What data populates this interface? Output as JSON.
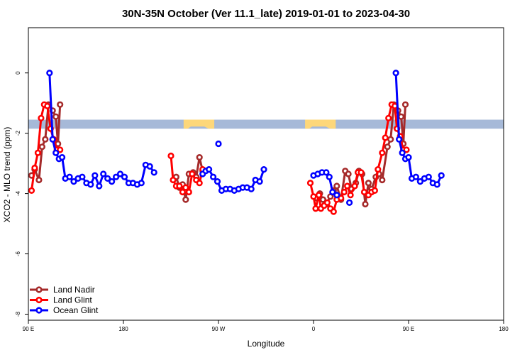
{
  "chart_data": {
    "type": "line",
    "title": "30N-35N October (Ver 11.1_late)   2019-01-01 to 2023-04-30",
    "xlabel": "Longitude",
    "ylabel": "XCO2 - MLO trend (ppm)",
    "xlim": [
      90,
      540
    ],
    "ylim": [
      -8.2,
      1.5
    ],
    "x_ticks": [
      {
        "value": 90,
        "label": "90 E"
      },
      {
        "value": 180,
        "label": "180"
      },
      {
        "value": 270,
        "label": "90 W"
      },
      {
        "value": 360,
        "label": "0"
      },
      {
        "value": 450,
        "label": "90 E"
      },
      {
        "value": 540,
        "label": "180"
      }
    ],
    "y_ticks": [
      {
        "value": 0,
        "label": "0"
      },
      {
        "value": -2,
        "label": "-2"
      },
      {
        "value": -4,
        "label": "-4"
      },
      {
        "value": -6,
        "label": "-6"
      },
      {
        "value": -8,
        "label": "-8"
      }
    ],
    "legend_position": "bottom-left",
    "grid": false,
    "band": {
      "y_range": [
        -1.85,
        -1.55
      ],
      "ocean_color": "#a6b9d8",
      "land_color": "#fdd77a",
      "land_segments": [
        [
          237,
          266
        ],
        [
          352,
          381
        ]
      ]
    },
    "series": [
      {
        "name": "Land Nadir",
        "color": "#a52a2a",
        "points": [
          [
            93,
            -3.4
          ],
          [
            96,
            -3.2
          ],
          [
            100,
            -3.55
          ],
          [
            103,
            -2.45
          ],
          [
            106,
            -2.2
          ],
          [
            109,
            -1.05
          ],
          [
            113,
            -1.25
          ],
          [
            116,
            -1.45
          ],
          [
            118,
            -2.35
          ],
          [
            120,
            -1.05
          ],
          [
            230,
            -3.45
          ],
          [
            233,
            -3.8
          ],
          [
            236,
            -3.7
          ],
          [
            239,
            -4.2
          ],
          [
            242,
            -3.35
          ],
          [
            246,
            -3.3
          ],
          [
            249,
            -3.45
          ],
          [
            252,
            -2.8
          ],
          [
            255,
            -3.25
          ],
          [
            363,
            -4.15
          ],
          [
            366,
            -4.0
          ],
          [
            369,
            -4.2
          ],
          [
            372,
            -4.35
          ],
          [
            376,
            -4.1
          ],
          [
            379,
            -3.9
          ],
          [
            382,
            -3.75
          ],
          [
            386,
            -4.2
          ],
          [
            390,
            -3.25
          ],
          [
            393,
            -3.35
          ],
          [
            396,
            -3.85
          ],
          [
            400,
            -3.65
          ],
          [
            403,
            -3.25
          ],
          [
            406,
            -3.35
          ],
          [
            409,
            -4.35
          ],
          [
            412,
            -3.65
          ],
          [
            415,
            -3.85
          ],
          [
            419,
            -3.45
          ],
          [
            422,
            -3.35
          ],
          [
            425,
            -3.55
          ],
          [
            430,
            -2.45
          ],
          [
            433,
            -2.2
          ],
          [
            436,
            -1.05
          ],
          [
            440,
            -1.25
          ],
          [
            443,
            -1.45
          ],
          [
            445,
            -2.35
          ],
          [
            447,
            -1.05
          ]
        ]
      },
      {
        "name": "Land Glint",
        "color": "#ff0000",
        "points": [
          [
            93,
            -3.9
          ],
          [
            96,
            -3.15
          ],
          [
            99,
            -2.65
          ],
          [
            102,
            -1.5
          ],
          [
            105,
            -1.05
          ],
          [
            108,
            -1.1
          ],
          [
            111,
            -1.85
          ],
          [
            114,
            -2.2
          ],
          [
            117,
            -2.55
          ],
          [
            120,
            -2.55
          ],
          [
            225,
            -2.75
          ],
          [
            227,
            -3.55
          ],
          [
            230,
            -3.75
          ],
          [
            233,
            -3.75
          ],
          [
            236,
            -3.95
          ],
          [
            239,
            -3.8
          ],
          [
            242,
            -3.95
          ],
          [
            245,
            -3.35
          ],
          [
            249,
            -3.55
          ],
          [
            252,
            -3.65
          ],
          [
            255,
            -3.2
          ],
          [
            357,
            -3.65
          ],
          [
            360,
            -4.1
          ],
          [
            362,
            -4.5
          ],
          [
            365,
            -4.05
          ],
          [
            367,
            -4.5
          ],
          [
            370,
            -4.4
          ],
          [
            373,
            -4.3
          ],
          [
            376,
            -4.5
          ],
          [
            379,
            -4.6
          ],
          [
            382,
            -4.2
          ],
          [
            386,
            -4.15
          ],
          [
            389,
            -3.95
          ],
          [
            392,
            -3.75
          ],
          [
            395,
            -4.05
          ],
          [
            399,
            -3.75
          ],
          [
            402,
            -3.3
          ],
          [
            405,
            -3.3
          ],
          [
            408,
            -3.95
          ],
          [
            412,
            -4.05
          ],
          [
            415,
            -3.95
          ],
          [
            418,
            -3.9
          ],
          [
            421,
            -3.2
          ],
          [
            425,
            -2.65
          ],
          [
            428,
            -2.15
          ],
          [
            431,
            -1.5
          ],
          [
            434,
            -1.05
          ],
          [
            437,
            -1.1
          ],
          [
            439,
            -1.85
          ],
          [
            442,
            -2.1
          ],
          [
            445,
            -2.55
          ],
          [
            448,
            -2.55
          ]
        ]
      },
      {
        "name": "Ocean Glint",
        "color": "#0000ff",
        "points": [
          [
            110,
            0.0
          ],
          [
            113,
            -2.2
          ],
          [
            116,
            -2.65
          ],
          [
            119,
            -2.85
          ],
          [
            122,
            -2.8
          ],
          [
            125,
            -3.5
          ],
          [
            129,
            -3.45
          ],
          [
            133,
            -3.6
          ],
          [
            137,
            -3.5
          ],
          [
            141,
            -3.45
          ],
          [
            145,
            -3.65
          ],
          [
            149,
            -3.7
          ],
          [
            153,
            -3.4
          ],
          [
            157,
            -3.75
          ],
          [
            161,
            -3.35
          ],
          [
            165,
            -3.5
          ],
          [
            169,
            -3.6
          ],
          [
            173,
            -3.45
          ],
          [
            177,
            -3.35
          ],
          [
            181,
            -3.45
          ],
          [
            185,
            -3.65
          ],
          [
            189,
            -3.65
          ],
          [
            193,
            -3.7
          ],
          [
            197,
            -3.65
          ],
          [
            201,
            -3.05
          ],
          [
            205,
            -3.1
          ],
          [
            209,
            -3.3
          ],
          [
            255,
            -3.35
          ],
          [
            258,
            -3.25
          ],
          [
            261,
            -3.2
          ],
          [
            265,
            -3.45
          ],
          [
            269,
            -3.6
          ],
          [
            273,
            -3.9
          ],
          [
            277,
            -3.85
          ],
          [
            281,
            -3.85
          ],
          [
            285,
            -3.9
          ],
          [
            289,
            -3.85
          ],
          [
            293,
            -3.8
          ],
          [
            297,
            -3.8
          ],
          [
            301,
            -3.85
          ],
          [
            305,
            -3.55
          ],
          [
            309,
            -3.6
          ],
          [
            313,
            -3.2
          ],
          [
            360,
            -3.4
          ],
          [
            364,
            -3.35
          ],
          [
            368,
            -3.3
          ],
          [
            372,
            -3.3
          ],
          [
            375,
            -3.45
          ],
          [
            378,
            -3.95
          ],
          [
            382,
            -4.05
          ],
          [
            438,
            0.0
          ],
          [
            441,
            -2.2
          ],
          [
            444,
            -2.65
          ],
          [
            447,
            -2.85
          ],
          [
            450,
            -2.8
          ],
          [
            453,
            -3.5
          ],
          [
            457,
            -3.45
          ],
          [
            461,
            -3.6
          ],
          [
            465,
            -3.5
          ],
          [
            469,
            -3.45
          ],
          [
            473,
            -3.65
          ],
          [
            477,
            -3.7
          ],
          [
            481,
            -3.4
          ]
        ],
        "isolated_points": [
          [
            270,
            -2.35
          ],
          [
            394,
            -4.3
          ]
        ]
      }
    ]
  }
}
